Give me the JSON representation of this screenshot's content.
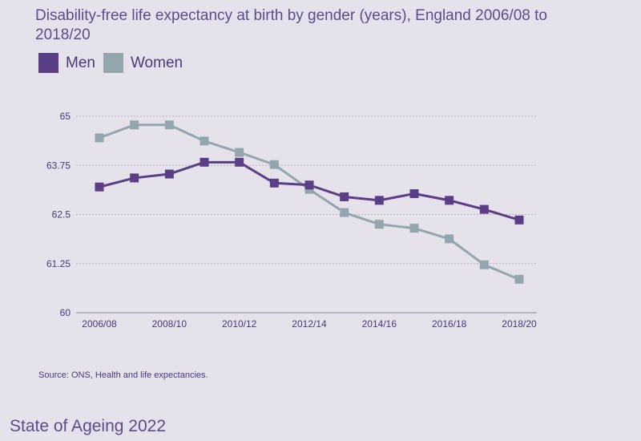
{
  "colors": {
    "men": "#5b3f86",
    "women": "#93a6ae",
    "grid": "#b6afc4",
    "axis": "#8a82a0"
  },
  "chart_data": {
    "type": "line",
    "title": "Disability-free life expectancy at birth by gender (years), England 2006/08 to 2018/20",
    "xlabel": "",
    "ylabel": "",
    "ylim": [
      60,
      65
    ],
    "yticks": [
      "65",
      "63.75",
      "62.5",
      "61.25",
      "60"
    ],
    "ytick_values": [
      65,
      63.75,
      62.5,
      61.25,
      60
    ],
    "x": [
      "2006/08",
      "2007/09",
      "2008/10",
      "2009/11",
      "2010/12",
      "2011/13",
      "2012/14",
      "2013/15",
      "2014/16",
      "2015/17",
      "2016/18",
      "2017/19",
      "2018/20"
    ],
    "xtick_labels": [
      "2006/08",
      "",
      "2008/10",
      "",
      "2010/12",
      "",
      "2012/14",
      "",
      "2014/16",
      "",
      "2016/18",
      "",
      "2018/20"
    ],
    "grid": "horizontal",
    "legend": "top-left",
    "series": [
      {
        "name": "Men",
        "values": [
          63.2,
          63.43,
          63.53,
          63.83,
          63.83,
          63.3,
          63.25,
          62.95,
          62.86,
          63.03,
          62.86,
          62.63,
          62.36
        ]
      },
      {
        "name": "Women",
        "values": [
          64.45,
          64.78,
          64.78,
          64.37,
          64.08,
          63.77,
          63.14,
          62.55,
          62.25,
          62.15,
          61.88,
          61.22,
          60.85
        ]
      }
    ]
  },
  "source": "Source: ONS, Health and life expectancies.",
  "footer": "State of Ageing 2022"
}
